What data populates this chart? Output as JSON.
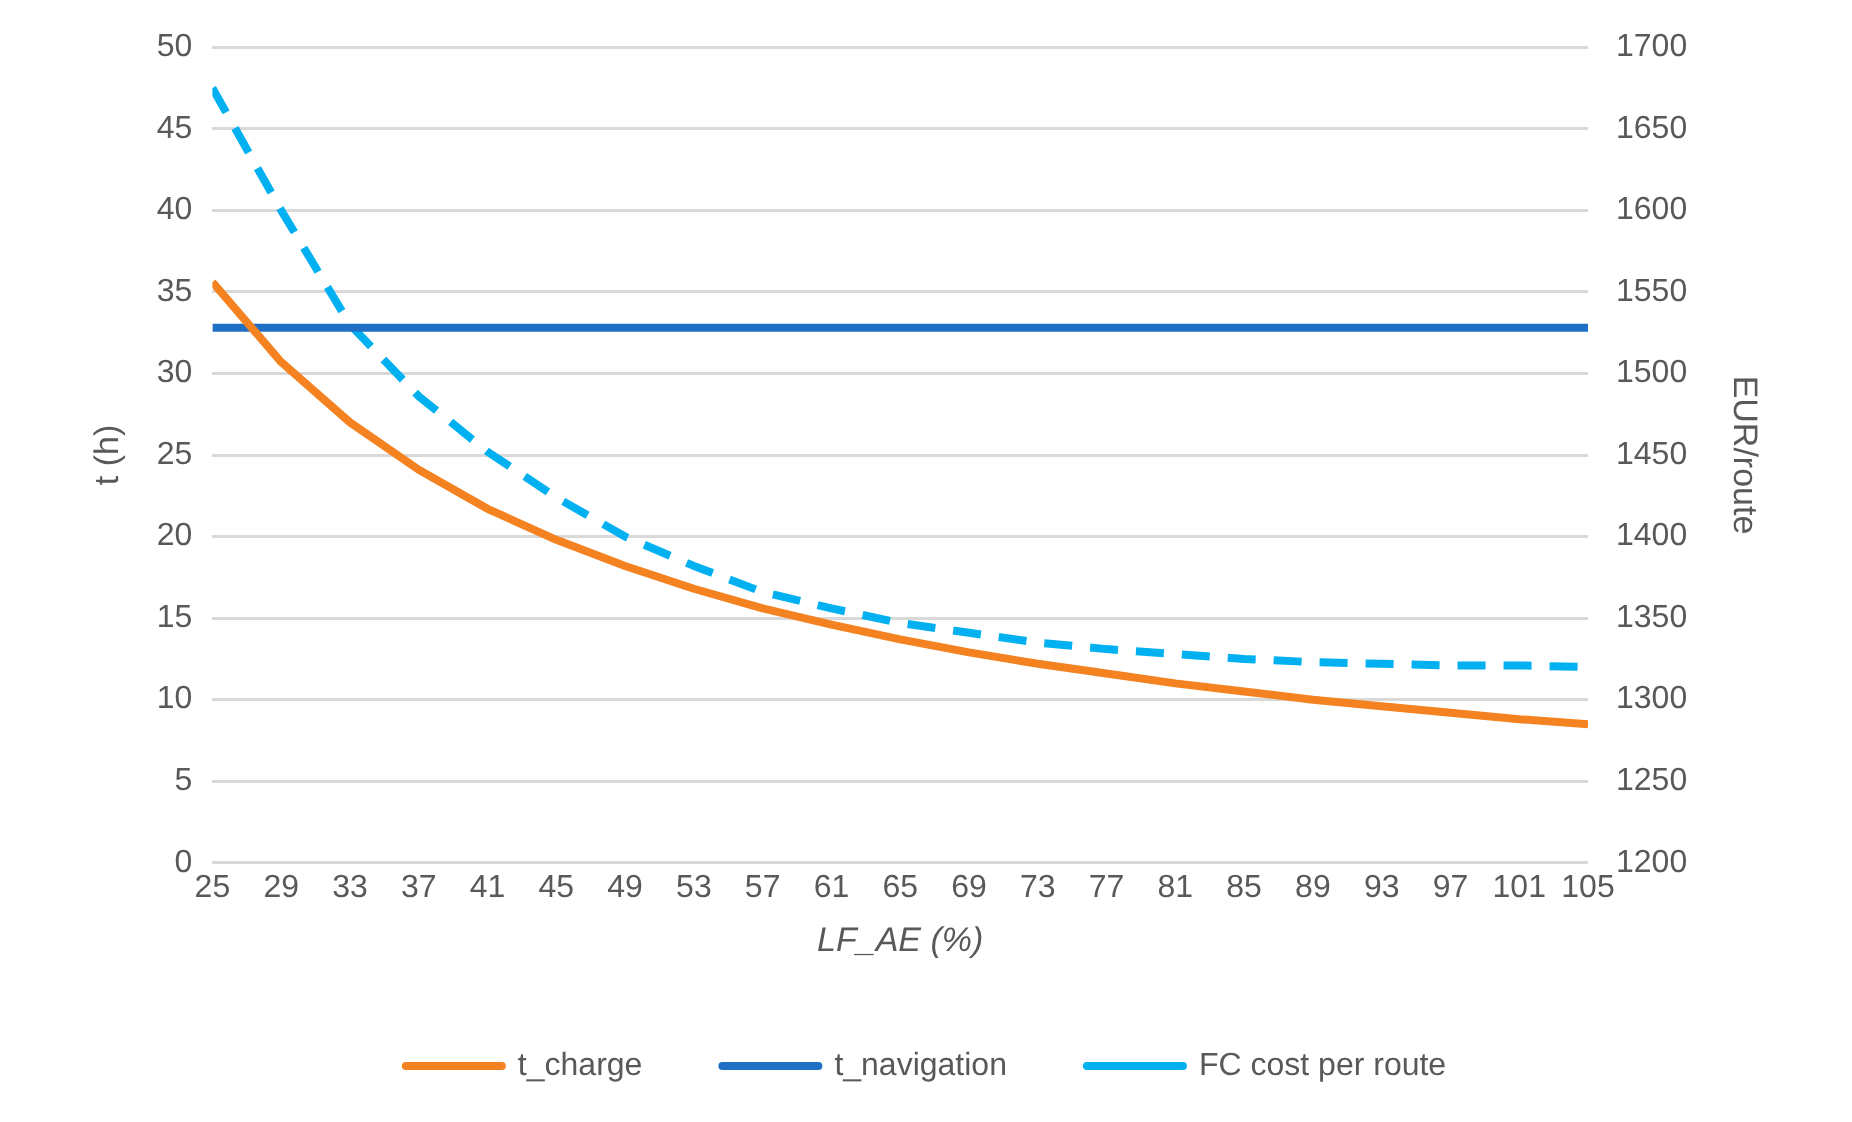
{
  "chart_data": {
    "type": "line",
    "xlabel": "LF_AE (%)",
    "ylabel": "t (h)",
    "y2label": "EUR/route",
    "x": [
      25,
      29,
      33,
      37,
      41,
      45,
      49,
      53,
      57,
      61,
      65,
      69,
      73,
      77,
      81,
      85,
      89,
      93,
      97,
      101,
      105
    ],
    "xlim": [
      25,
      105
    ],
    "xticks": [
      25,
      29,
      33,
      37,
      41,
      45,
      49,
      53,
      57,
      61,
      65,
      69,
      73,
      77,
      81,
      85,
      89,
      93,
      97,
      101,
      105
    ],
    "ylim": [
      0,
      50
    ],
    "yticks": [
      0,
      5,
      10,
      15,
      20,
      25,
      30,
      35,
      40,
      45,
      50
    ],
    "y2lim": [
      1200,
      1700
    ],
    "y2ticks": [
      1200,
      1250,
      1300,
      1350,
      1400,
      1450,
      1500,
      1550,
      1600,
      1650,
      1700
    ],
    "series": [
      {
        "name": "t_charge",
        "color": "#f58220",
        "values": [
          35.6,
          30.7,
          27.0,
          24.1,
          21.7,
          19.8,
          18.2,
          16.8,
          15.6,
          14.6,
          13.7,
          12.9,
          12.2,
          11.6,
          11.0,
          10.5,
          10.0,
          9.6,
          9.2,
          8.8,
          8.5
        ]
      },
      {
        "name": "t_navigation",
        "color": "#1f6fc5",
        "values": [
          32.8,
          32.8,
          32.8,
          32.8,
          32.8,
          32.8,
          32.8,
          32.8,
          32.8,
          32.8,
          32.8,
          32.8,
          32.8,
          32.8,
          32.8,
          32.8,
          32.8,
          32.8,
          32.8,
          32.8,
          32.8
        ]
      },
      {
        "name": "FC cost per route",
        "color": "#00b0f0",
        "axis": "y2",
        "line_style": "dashed",
        "values": [
          1675,
          1600,
          1530,
          1486,
          1452,
          1424,
          1400,
          1382,
          1366,
          1356,
          1347,
          1341,
          1335,
          1331,
          1328,
          1325,
          1323,
          1322,
          1321,
          1321,
          1320
        ]
      }
    ],
    "grid": "y",
    "legend": "bottom",
    "marker": "none"
  }
}
